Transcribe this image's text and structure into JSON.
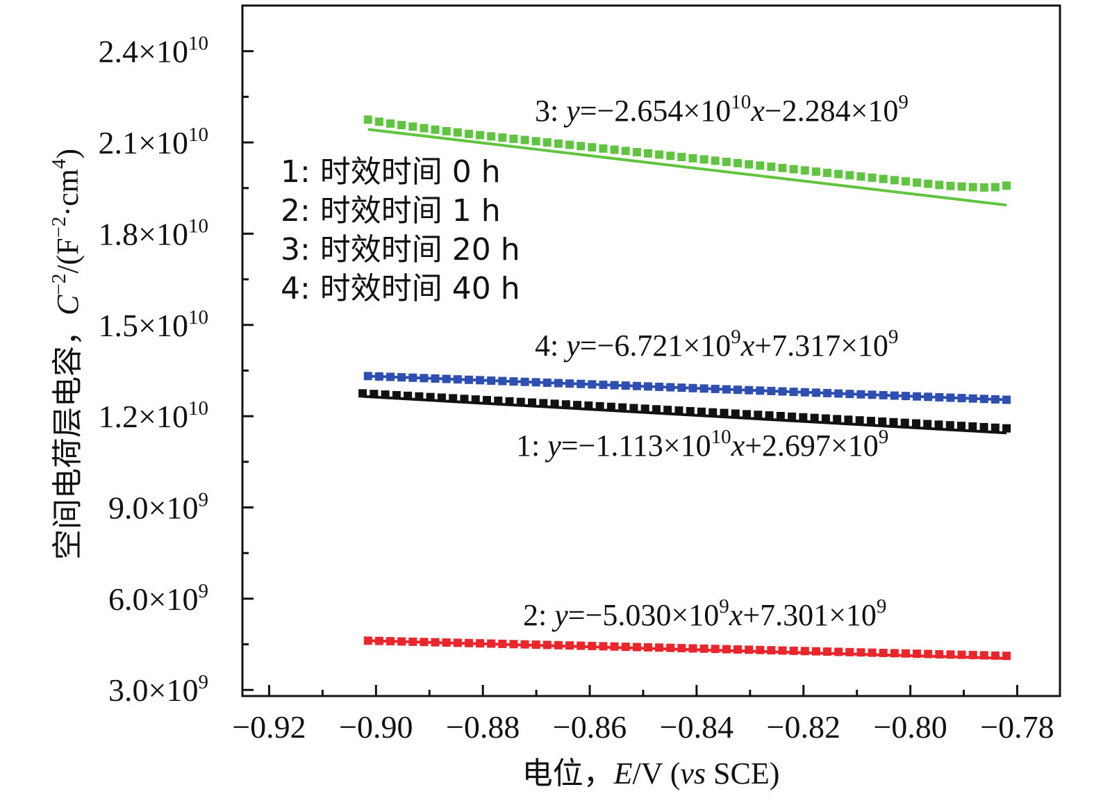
{
  "chart_data": {
    "type": "scatter",
    "title": "",
    "xlabel": {
      "cn": "电位，",
      "var": "E",
      "unit": "/V (",
      "vs": "vs",
      "ref": " SCE)"
    },
    "ylabel": {
      "cn": "空间电荷层电容，",
      "var": "C",
      "exp1": "−2",
      "unit1": "/(F",
      "exp2": "−2",
      "unit2": "·cm",
      "exp3": "4",
      "unit3": ")"
    },
    "xlim": [
      -0.925,
      -0.772
    ],
    "ylim": [
      2800000000.0,
      25500000000.0
    ],
    "x_ticks": [
      {
        "value": -0.92,
        "label": "−0.92"
      },
      {
        "value": -0.9,
        "label": "−0.90"
      },
      {
        "value": -0.88,
        "label": "−0.88"
      },
      {
        "value": -0.86,
        "label": "−0.86"
      },
      {
        "value": -0.84,
        "label": "−0.84"
      },
      {
        "value": -0.82,
        "label": "−0.82"
      },
      {
        "value": -0.8,
        "label": "−0.80"
      },
      {
        "value": -0.78,
        "label": "−0.78"
      }
    ],
    "y_ticks": [
      {
        "value": 3000000000.0,
        "mantissa": "3.0×10",
        "exp": "9"
      },
      {
        "value": 6000000000.0,
        "mantissa": "6.0×10",
        "exp": "9"
      },
      {
        "value": 9000000000.0,
        "mantissa": "9.0×10",
        "exp": "9"
      },
      {
        "value": 12000000000.0,
        "mantissa": "1.2×10",
        "exp": "10"
      },
      {
        "value": 15000000000.0,
        "mantissa": "1.5×10",
        "exp": "10"
      },
      {
        "value": 18000000000.0,
        "mantissa": "1.8×10",
        "exp": "10"
      },
      {
        "value": 21000000000.0,
        "mantissa": "2.1×10",
        "exp": "10"
      },
      {
        "value": 24000000000.0,
        "mantissa": "2.4×10",
        "exp": "10"
      }
    ],
    "legend": {
      "placement": "upper-left",
      "entries": [
        "1: 时效时间 0 h",
        "2: 时效时间 1 h",
        "3: 时效时间 20 h",
        "4: 时效时间 40 h"
      ]
    },
    "series": [
      {
        "name": "1",
        "color": "#111111",
        "x_start": -0.9025,
        "x_end": -0.782,
        "n_points": 58,
        "y_start": 12750000000.0,
        "y_end": 11600000000.0,
        "fit": {
          "slope": -11130000000.0,
          "intercept": 2697000000.0
        },
        "fit_y_start": 12650000000.0,
        "fit_y_end": 11450000000.0,
        "equation": {
          "pre": "1: ",
          "y": "y",
          "mid1": "=−1.113×10",
          "e1": "10",
          "x": "x",
          "mid2": "+2.697×10",
          "e2": "9"
        }
      },
      {
        "name": "2",
        "color": "#e8262b",
        "x_start": -0.9015,
        "x_end": -0.782,
        "n_points": 58,
        "y_start": 4620000000.0,
        "y_end": 4120000000.0,
        "fit": {
          "slope": -5030000000.0,
          "intercept": 7301000000.0
        },
        "fit_y_start": 4620000000.0,
        "fit_y_end": 4040000000.0,
        "equation": {
          "pre": "2: ",
          "y": "y",
          "mid1": "=−5.030×10",
          "e1": "9",
          "x": "x",
          "mid2": "+7.301×10",
          "e2": "9"
        }
      },
      {
        "name": "3",
        "color": "#61c440",
        "x_start": -0.9015,
        "x_end": -0.782,
        "n_points": 58,
        "y_values": [
          21750000000.0,
          21680000000.0,
          21620000000.0,
          21570000000.0,
          21520000000.0,
          21470000000.0,
          21420000000.0,
          21370000000.0,
          21330000000.0,
          21280000000.0,
          21240000000.0,
          21200000000.0,
          21160000000.0,
          21120000000.0,
          21080000000.0,
          21040000000.0,
          21000000000.0,
          20960000000.0,
          20920000000.0,
          20880000000.0,
          20840000000.0,
          20800000000.0,
          20760000000.0,
          20720000000.0,
          20680000000.0,
          20640000000.0,
          20600000000.0,
          20560000000.0,
          20520000000.0,
          20480000000.0,
          20440000000.0,
          20400000000.0,
          20360000000.0,
          20320000000.0,
          20280000000.0,
          20240000000.0,
          20200000000.0,
          20160000000.0,
          20120000000.0,
          20080000000.0,
          20040000000.0,
          20000000000.0,
          19960000000.0,
          19920000000.0,
          19880000000.0,
          19840000000.0,
          19800000000.0,
          19760000000.0,
          19720000000.0,
          19680000000.0,
          19640000000.0,
          19600000000.0,
          19570000000.0,
          19550000000.0,
          19530000000.0,
          19520000000.0,
          19530000000.0,
          19580000000.0
        ],
        "fit": {
          "slope": -26540000000.0,
          "intercept": -2284000000.0
        },
        "fit_y_start": 21430000000.0,
        "fit_y_end": 18940000000.0,
        "equation": {
          "pre": "3: ",
          "y": "y",
          "mid1": "=−2.654×10",
          "e1": "10",
          "x": "x",
          "mid2": "−2.284×10",
          "e2": "9"
        }
      },
      {
        "name": "4",
        "color": "#2e4fb0",
        "x_start": -0.9015,
        "x_end": -0.782,
        "n_points": 58,
        "y_start": 13320000000.0,
        "y_end": 12540000000.0,
        "fit": {
          "slope": -6721000000.0,
          "intercept": 7317000000.0
        },
        "fit_y_start": 13320000000.0,
        "fit_y_end": 12540000000.0,
        "equation": {
          "pre": "4: ",
          "y": "y",
          "mid1": "=−6.721×10",
          "e1": "9",
          "x": "x",
          "mid2": "+7.317×10",
          "e2": "9"
        }
      }
    ]
  }
}
